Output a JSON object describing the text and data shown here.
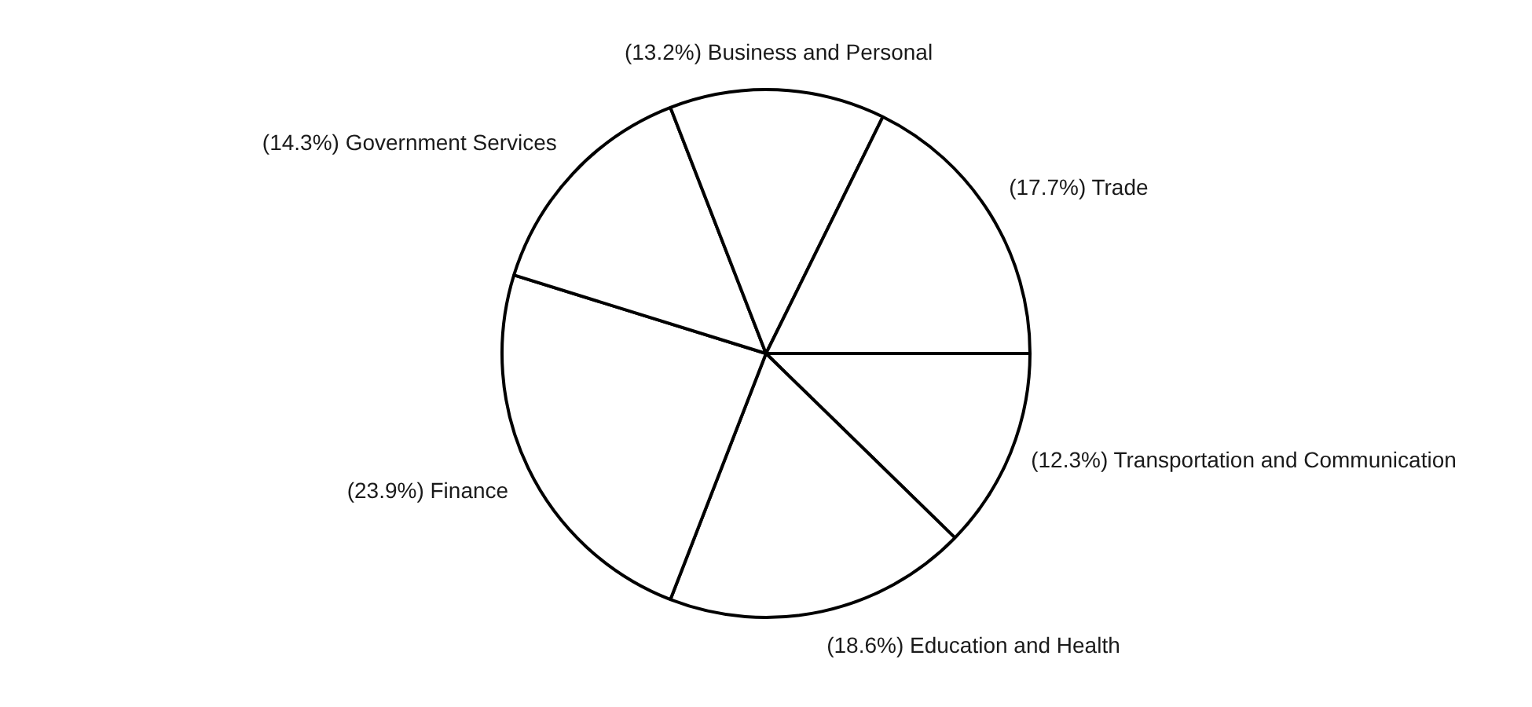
{
  "chart_data": {
    "type": "pie",
    "categories": [
      "Transportation and Communication",
      "Education and Health",
      "Finance",
      "Government Services",
      "Business and Personal",
      "Trade"
    ],
    "values": [
      12.3,
      18.6,
      23.9,
      14.3,
      13.2,
      17.7
    ],
    "colors": [
      "#ffffff",
      "#ffffff",
      "#ffffff",
      "#ffffff",
      "#ffffff",
      "#ffffff"
    ],
    "value_labels": [
      "(12.3%)",
      "(18.6%)",
      "(23.9%)",
      "(14.3%)",
      "(13.2%)",
      "(17.7%)"
    ],
    "legend": false
  }
}
